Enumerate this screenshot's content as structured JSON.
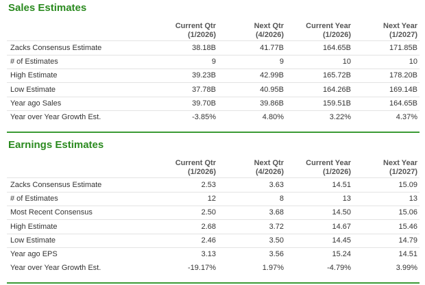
{
  "sections": [
    {
      "title": "Sales Estimates",
      "headers": [
        {
          "label": "Current Qtr",
          "period": "(1/2026)"
        },
        {
          "label": "Next Qtr",
          "period": "(4/2026)"
        },
        {
          "label": "Current Year",
          "period": "(1/2026)"
        },
        {
          "label": "Next Year",
          "period": "(1/2027)"
        }
      ],
      "rows": [
        [
          "Zacks Consensus Estimate",
          "38.18B",
          "41.77B",
          "164.65B",
          "171.85B"
        ],
        [
          "# of Estimates",
          "9",
          "9",
          "10",
          "10"
        ],
        [
          "High Estimate",
          "39.23B",
          "42.99B",
          "165.72B",
          "178.20B"
        ],
        [
          "Low Estimate",
          "37.78B",
          "40.95B",
          "164.26B",
          "169.14B"
        ],
        [
          "Year ago Sales",
          "39.70B",
          "39.86B",
          "159.51B",
          "164.65B"
        ],
        [
          "Year over Year Growth Est.",
          "-3.85%",
          "4.80%",
          "3.22%",
          "4.37%"
        ]
      ]
    },
    {
      "title": "Earnings Estimates",
      "headers": [
        {
          "label": "Current Qtr",
          "period": "(1/2026)"
        },
        {
          "label": "Next Qtr",
          "period": "(4/2026)"
        },
        {
          "label": "Current Year",
          "period": "(1/2026)"
        },
        {
          "label": "Next Year",
          "period": "(1/2027)"
        }
      ],
      "rows": [
        [
          "Zacks Consensus Estimate",
          "2.53",
          "3.63",
          "14.51",
          "15.09"
        ],
        [
          "# of Estimates",
          "12",
          "8",
          "13",
          "13"
        ],
        [
          "Most Recent Consensus",
          "2.50",
          "3.68",
          "14.50",
          "15.06"
        ],
        [
          "High Estimate",
          "2.68",
          "3.72",
          "14.67",
          "15.46"
        ],
        [
          "Low Estimate",
          "2.46",
          "3.50",
          "14.45",
          "14.79"
        ],
        [
          "Year ago EPS",
          "3.13",
          "3.56",
          "15.24",
          "14.51"
        ],
        [
          "Year over Year Growth Est.",
          "-19.17%",
          "1.97%",
          "-4.79%",
          "3.99%"
        ]
      ]
    }
  ]
}
